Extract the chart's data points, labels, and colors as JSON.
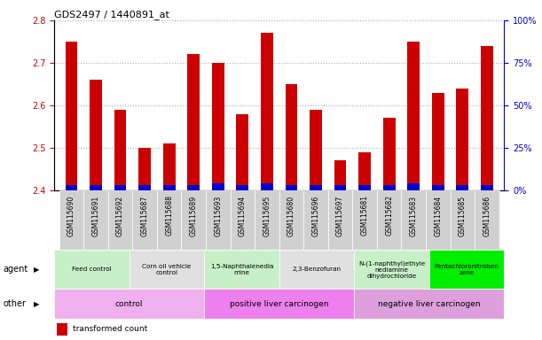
{
  "title": "GDS2497 / 1440891_at",
  "samples": [
    "GSM115690",
    "GSM115691",
    "GSM115692",
    "GSM115687",
    "GSM115688",
    "GSM115689",
    "GSM115693",
    "GSM115694",
    "GSM115695",
    "GSM115680",
    "GSM115696",
    "GSM115697",
    "GSM115681",
    "GSM115682",
    "GSM115683",
    "GSM115684",
    "GSM115685",
    "GSM115686"
  ],
  "transformed_count": [
    2.75,
    2.66,
    2.59,
    2.5,
    2.51,
    2.72,
    2.7,
    2.58,
    2.77,
    2.65,
    2.59,
    2.47,
    2.49,
    2.57,
    2.75,
    2.63,
    2.64,
    2.74
  ],
  "percentile_rank": [
    3,
    3,
    3,
    3,
    3,
    3,
    4,
    3,
    4,
    3,
    3,
    3,
    3,
    3,
    4,
    3,
    3,
    3
  ],
  "ylim_left": [
    2.4,
    2.8
  ],
  "ylim_right": [
    0,
    100
  ],
  "yticks_left": [
    2.4,
    2.5,
    2.6,
    2.7,
    2.8
  ],
  "yticks_right": [
    0,
    25,
    50,
    75,
    100
  ],
  "agent_groups": [
    {
      "label": "Feed control",
      "start": 0,
      "end": 3,
      "color": "#c8f0c8"
    },
    {
      "label": "Corn oil vehicle\ncontrol",
      "start": 3,
      "end": 6,
      "color": "#e0e0e0"
    },
    {
      "label": "1,5-Naphthalenedia\nmine",
      "start": 6,
      "end": 9,
      "color": "#c8f0c8"
    },
    {
      "label": "2,3-Benzofuran",
      "start": 9,
      "end": 12,
      "color": "#e0e0e0"
    },
    {
      "label": "N-(1-naphthyl)ethyle\nnediamine\ndihydrochloride",
      "start": 12,
      "end": 15,
      "color": "#c8f0c8"
    },
    {
      "label": "Pentachloronitroben\nzene",
      "start": 15,
      "end": 18,
      "color": "#00ee00"
    }
  ],
  "other_groups": [
    {
      "label": "control",
      "start": 0,
      "end": 6,
      "color": "#f0b0f0"
    },
    {
      "label": "positive liver carcinogen",
      "start": 6,
      "end": 12,
      "color": "#ee80ee"
    },
    {
      "label": "negative liver carcinogen",
      "start": 12,
      "end": 18,
      "color": "#dda0dd"
    }
  ],
  "bar_color_red": "#cc0000",
  "bar_color_blue": "#0000cc",
  "grid_color": "#aaaaaa",
  "label_color_left": "#cc0000",
  "label_color_right": "#0000cc",
  "agent_label": "agent",
  "other_label": "other",
  "chart_bg": "#ffffff",
  "xtick_bg": "#d0d0d0"
}
